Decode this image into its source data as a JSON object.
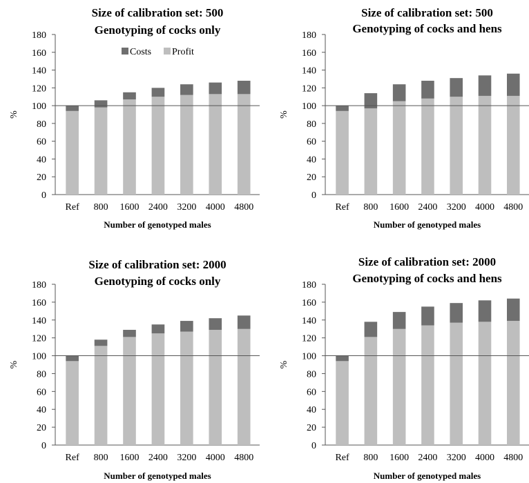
{
  "colors": {
    "costs": "#6f6f6f",
    "profit": "#bebebe",
    "axis": "#555555",
    "refline": "#555555"
  },
  "legend": {
    "costs": "Costs",
    "profit": "Profit"
  },
  "chart_data": [
    {
      "type": "bar",
      "stacked": true,
      "title": [
        "Size of calibration set: 500",
        "Genotyping of cocks only"
      ],
      "xlabel": "Number of genotyped males",
      "ylabel": "%",
      "ylim": [
        0,
        180
      ],
      "yticks": [
        0,
        20,
        40,
        60,
        80,
        100,
        120,
        140,
        160,
        180
      ],
      "categories": [
        "Ref",
        "800",
        "1600",
        "2400",
        "3200",
        "4000",
        "4800"
      ],
      "reference_line": 100,
      "legend": "top-center",
      "series": [
        {
          "name": "Profit",
          "values": [
            94,
            98,
            107,
            110,
            112,
            113,
            113
          ]
        },
        {
          "name": "Costs",
          "values": [
            6,
            8,
            8,
            10,
            12,
            13,
            15
          ]
        }
      ]
    },
    {
      "type": "bar",
      "stacked": true,
      "title": [
        "Size of calibration set: 500",
        "Genotyping of cocks and hens"
      ],
      "xlabel": "Number of genotyped males",
      "ylabel": "%",
      "ylim": [
        0,
        180
      ],
      "yticks": [
        0,
        20,
        40,
        60,
        80,
        100,
        120,
        140,
        160,
        180
      ],
      "categories": [
        "Ref",
        "800",
        "1600",
        "2400",
        "3200",
        "4000",
        "4800"
      ],
      "reference_line": 100,
      "series": [
        {
          "name": "Profit",
          "values": [
            94,
            97,
            105,
            108,
            110,
            111,
            111
          ]
        },
        {
          "name": "Costs",
          "values": [
            6,
            17,
            19,
            20,
            21,
            23,
            25
          ]
        }
      ]
    },
    {
      "type": "bar",
      "stacked": true,
      "title": [
        "Size of calibration set: 2000",
        "Genotyping of cocks only"
      ],
      "xlabel": "Number of genotyped males",
      "ylabel": "%",
      "ylim": [
        0,
        180
      ],
      "yticks": [
        0,
        20,
        40,
        60,
        80,
        100,
        120,
        140,
        160,
        180
      ],
      "categories": [
        "Ref",
        "800",
        "1600",
        "2400",
        "3200",
        "4000",
        "4800"
      ],
      "reference_line": 100,
      "series": [
        {
          "name": "Profit",
          "values": [
            94,
            111,
            121,
            125,
            127,
            129,
            130
          ]
        },
        {
          "name": "Costs",
          "values": [
            6,
            7,
            8,
            10,
            12,
            13,
            15
          ]
        }
      ]
    },
    {
      "type": "bar",
      "stacked": true,
      "title": [
        "Size of calibration set: 2000",
        "Genotyping of cocks and hens"
      ],
      "xlabel": "Number of genotyped males",
      "ylabel": "%",
      "ylim": [
        0,
        180
      ],
      "yticks": [
        0,
        20,
        40,
        60,
        80,
        100,
        120,
        140,
        160,
        180
      ],
      "categories": [
        "Ref",
        "800",
        "1600",
        "2400",
        "3200",
        "4000",
        "4800"
      ],
      "reference_line": 100,
      "series": [
        {
          "name": "Profit",
          "values": [
            94,
            121,
            130,
            134,
            137,
            138,
            139
          ]
        },
        {
          "name": "Costs",
          "values": [
            6,
            17,
            19,
            21,
            22,
            24,
            25
          ]
        }
      ]
    }
  ]
}
